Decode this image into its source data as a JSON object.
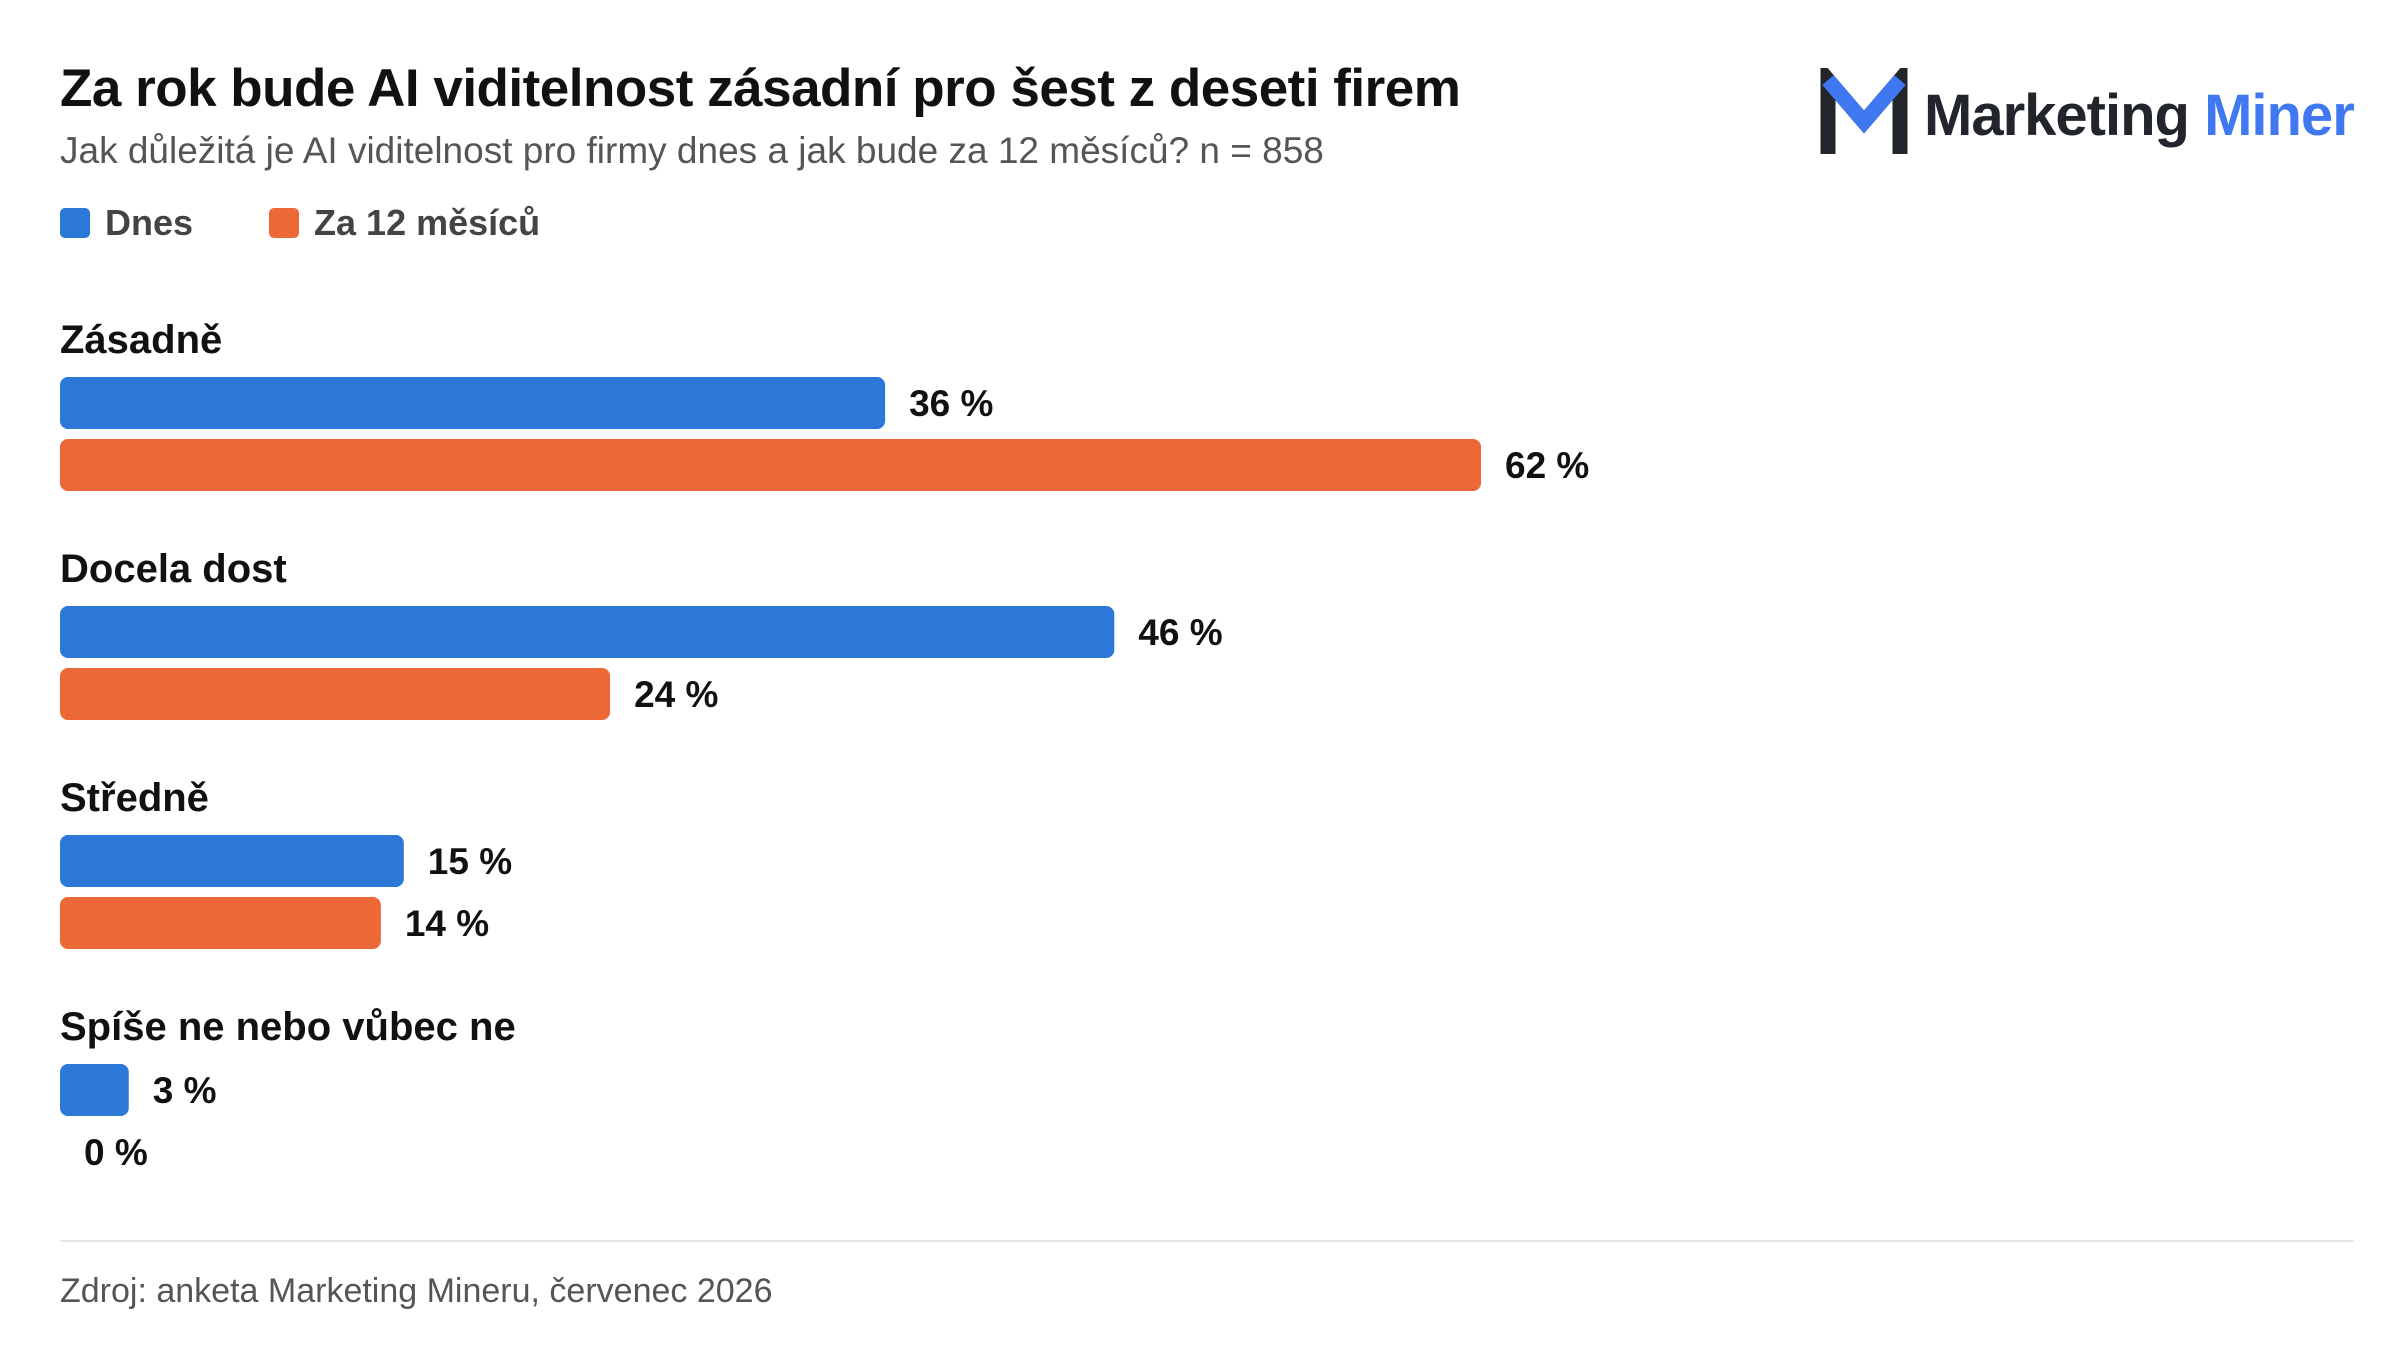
{
  "header": {
    "title": "Za rok bude AI viditelnost zásadní pro šest z deseti firem",
    "subtitle": "Jak důležitá je AI viditelnost pro firmy dnes a jak bude za 12 měsíců? n = 858"
  },
  "brand": {
    "name_part1": "Marketing",
    "name_part2": "Miner",
    "icon": "m-logo-icon",
    "colors": {
      "dark": "#22252b",
      "accent": "#3f78f0"
    }
  },
  "footer": {
    "source": "Zdroj: anketa Marketing Mineru, červenec 2026"
  },
  "chart_data": {
    "type": "bar",
    "orientation": "horizontal",
    "title": "Za rok bude AI viditelnost zásadní pro šest z deseti firem",
    "subtitle": "Jak důležitá je AI viditelnost pro firmy dnes a jak bude za 12 měsíců? n = 858",
    "categories": [
      "Zásadně",
      "Docela dost",
      "Středně",
      "Spíše ne nebo vůbec ne"
    ],
    "series": [
      {
        "name": "Dnes",
        "color": "#2b78d8",
        "values": [
          36,
          46,
          15,
          3
        ]
      },
      {
        "name": "Za 12 měsíců",
        "color": "#ec6837",
        "values": [
          62,
          24,
          14,
          0
        ]
      }
    ],
    "value_suffix": " %",
    "unit": "%",
    "xlim": [
      0,
      100
    ],
    "legend_position": "top-left",
    "grid": false
  }
}
